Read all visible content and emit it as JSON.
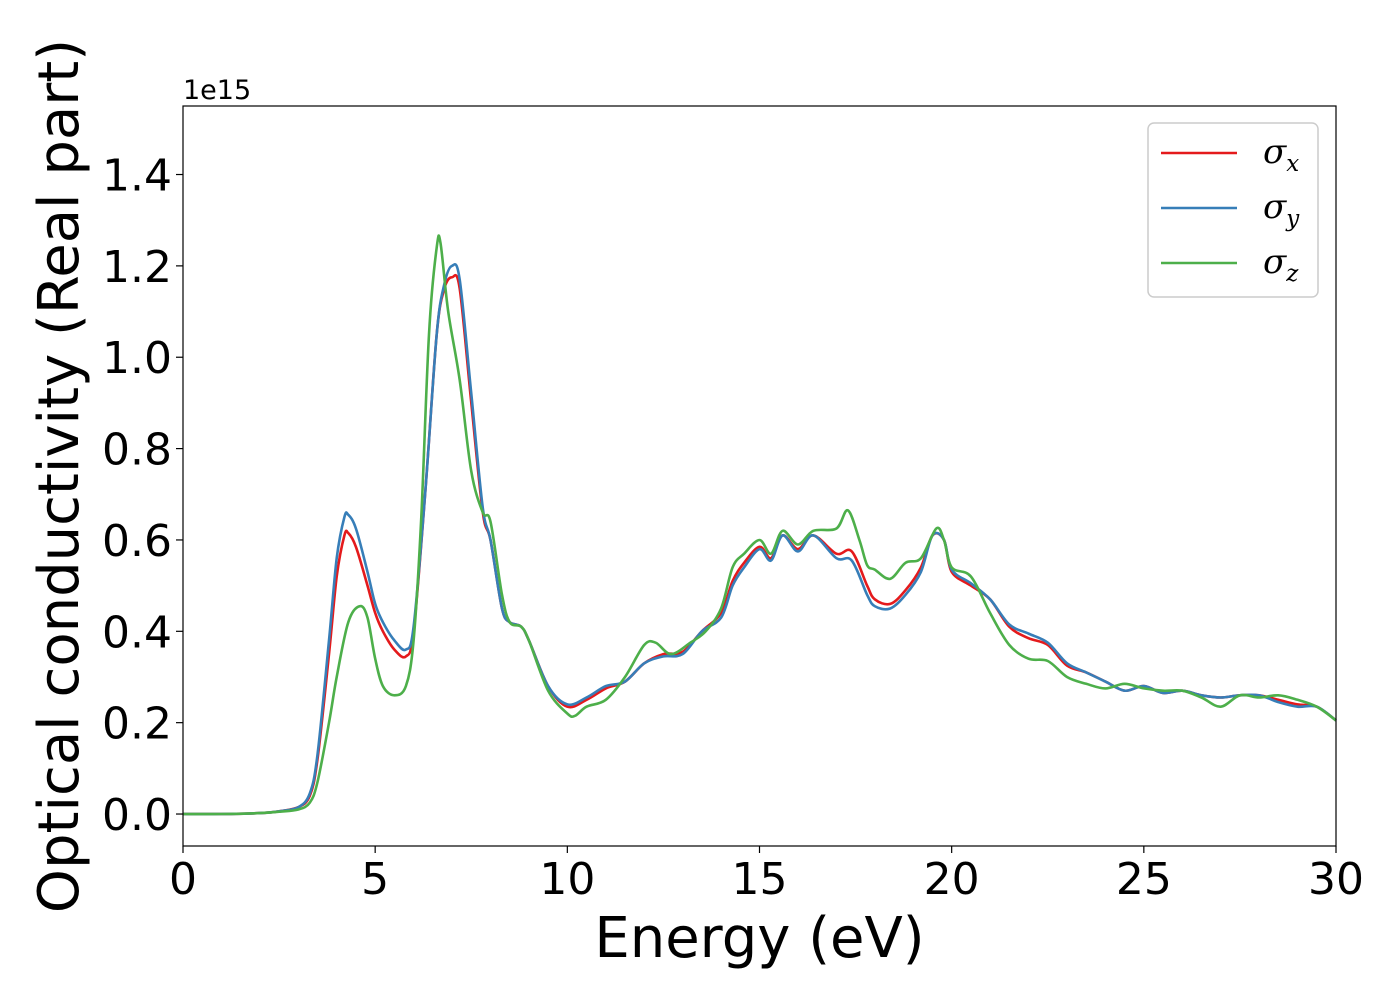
{
  "chart_data": {
    "type": "line",
    "title": "",
    "xlabel": "Energy (eV)",
    "ylabel": "Optical conductivity (Real part)",
    "y_offset_label": "1e15",
    "xlim": [
      0,
      30
    ],
    "ylim": [
      -0.07,
      1.55
    ],
    "xticks": [
      0,
      5,
      10,
      15,
      20,
      25,
      30
    ],
    "xtick_labels": [
      "0",
      "5",
      "10",
      "15",
      "20",
      "25",
      "30"
    ],
    "yticks": [
      0.0,
      0.2,
      0.4,
      0.6,
      0.8,
      1.0,
      1.2,
      1.4
    ],
    "ytick_labels": [
      "0.0",
      "0.2",
      "0.4",
      "0.6",
      "0.8",
      "1.0",
      "1.2",
      "1.4"
    ],
    "grid": false,
    "legend_position": "top-right",
    "series": [
      {
        "name": "σx",
        "symbol": "σ",
        "subscript": "x",
        "color": "#e41a1c",
        "points": [
          [
            0,
            0.0
          ],
          [
            1,
            0.0
          ],
          [
            2,
            0.002
          ],
          [
            2.5,
            0.006
          ],
          [
            3,
            0.015
          ],
          [
            3.3,
            0.04
          ],
          [
            3.5,
            0.12
          ],
          [
            3.8,
            0.35
          ],
          [
            4.0,
            0.52
          ],
          [
            4.2,
            0.61
          ],
          [
            4.3,
            0.615
          ],
          [
            4.5,
            0.585
          ],
          [
            4.8,
            0.5
          ],
          [
            5.0,
            0.44
          ],
          [
            5.2,
            0.4
          ],
          [
            5.5,
            0.36
          ],
          [
            5.8,
            0.345
          ],
          [
            6.0,
            0.4
          ],
          [
            6.3,
            0.7
          ],
          [
            6.6,
            1.05
          ],
          [
            6.8,
            1.15
          ],
          [
            7.0,
            1.175
          ],
          [
            7.2,
            1.15
          ],
          [
            7.5,
            0.9
          ],
          [
            7.8,
            0.66
          ],
          [
            8.0,
            0.6
          ],
          [
            8.3,
            0.45
          ],
          [
            8.5,
            0.42
          ],
          [
            8.8,
            0.41
          ],
          [
            9.0,
            0.38
          ],
          [
            9.5,
            0.28
          ],
          [
            10.0,
            0.235
          ],
          [
            10.5,
            0.25
          ],
          [
            11.0,
            0.275
          ],
          [
            11.5,
            0.29
          ],
          [
            12.0,
            0.33
          ],
          [
            12.5,
            0.35
          ],
          [
            13.0,
            0.355
          ],
          [
            13.5,
            0.4
          ],
          [
            14.0,
            0.44
          ],
          [
            14.3,
            0.51
          ],
          [
            14.6,
            0.55
          ],
          [
            15.0,
            0.585
          ],
          [
            15.3,
            0.56
          ],
          [
            15.6,
            0.61
          ],
          [
            16.0,
            0.58
          ],
          [
            16.4,
            0.61
          ],
          [
            17.0,
            0.57
          ],
          [
            17.4,
            0.575
          ],
          [
            17.8,
            0.5
          ],
          [
            18.0,
            0.47
          ],
          [
            18.4,
            0.46
          ],
          [
            18.8,
            0.49
          ],
          [
            19.2,
            0.54
          ],
          [
            19.5,
            0.61
          ],
          [
            19.8,
            0.6
          ],
          [
            20.0,
            0.53
          ],
          [
            20.5,
            0.5
          ],
          [
            21.0,
            0.47
          ],
          [
            21.5,
            0.41
          ],
          [
            22.0,
            0.385
          ],
          [
            22.5,
            0.37
          ],
          [
            23.0,
            0.325
          ],
          [
            23.5,
            0.31
          ],
          [
            24.0,
            0.29
          ],
          [
            24.5,
            0.27
          ],
          [
            25.0,
            0.28
          ],
          [
            25.5,
            0.265
          ],
          [
            26.0,
            0.27
          ],
          [
            26.5,
            0.26
          ],
          [
            27.0,
            0.255
          ],
          [
            27.5,
            0.26
          ],
          [
            28.0,
            0.26
          ],
          [
            28.5,
            0.25
          ],
          [
            29.0,
            0.24
          ],
          [
            29.5,
            0.235
          ],
          [
            30,
            0.205
          ]
        ]
      },
      {
        "name": "σy",
        "symbol": "σ",
        "subscript": "y",
        "color": "#377eb8",
        "points": [
          [
            0,
            0.0
          ],
          [
            1,
            0.0
          ],
          [
            2,
            0.002
          ],
          [
            2.5,
            0.006
          ],
          [
            3,
            0.015
          ],
          [
            3.3,
            0.045
          ],
          [
            3.5,
            0.13
          ],
          [
            3.8,
            0.38
          ],
          [
            4.0,
            0.56
          ],
          [
            4.2,
            0.65
          ],
          [
            4.3,
            0.655
          ],
          [
            4.5,
            0.625
          ],
          [
            4.8,
            0.53
          ],
          [
            5.0,
            0.46
          ],
          [
            5.2,
            0.42
          ],
          [
            5.5,
            0.38
          ],
          [
            5.8,
            0.36
          ],
          [
            6.0,
            0.41
          ],
          [
            6.3,
            0.7
          ],
          [
            6.6,
            1.05
          ],
          [
            6.8,
            1.16
          ],
          [
            7.0,
            1.2
          ],
          [
            7.2,
            1.17
          ],
          [
            7.5,
            0.92
          ],
          [
            7.8,
            0.67
          ],
          [
            8.0,
            0.6
          ],
          [
            8.3,
            0.45
          ],
          [
            8.5,
            0.42
          ],
          [
            8.8,
            0.41
          ],
          [
            9.0,
            0.38
          ],
          [
            9.5,
            0.28
          ],
          [
            10.0,
            0.24
          ],
          [
            10.5,
            0.255
          ],
          [
            11.0,
            0.28
          ],
          [
            11.5,
            0.29
          ],
          [
            12.0,
            0.33
          ],
          [
            12.5,
            0.345
          ],
          [
            13.0,
            0.35
          ],
          [
            13.5,
            0.4
          ],
          [
            14.0,
            0.43
          ],
          [
            14.3,
            0.5
          ],
          [
            14.6,
            0.54
          ],
          [
            15.0,
            0.58
          ],
          [
            15.3,
            0.555
          ],
          [
            15.6,
            0.61
          ],
          [
            16.0,
            0.575
          ],
          [
            16.4,
            0.61
          ],
          [
            17.0,
            0.56
          ],
          [
            17.4,
            0.555
          ],
          [
            17.8,
            0.48
          ],
          [
            18.0,
            0.455
          ],
          [
            18.4,
            0.45
          ],
          [
            18.8,
            0.48
          ],
          [
            19.2,
            0.53
          ],
          [
            19.5,
            0.61
          ],
          [
            19.8,
            0.6
          ],
          [
            20.0,
            0.535
          ],
          [
            20.5,
            0.505
          ],
          [
            21.0,
            0.47
          ],
          [
            21.5,
            0.415
          ],
          [
            22.0,
            0.395
          ],
          [
            22.5,
            0.375
          ],
          [
            23.0,
            0.33
          ],
          [
            23.5,
            0.31
          ],
          [
            24.0,
            0.29
          ],
          [
            24.5,
            0.27
          ],
          [
            25.0,
            0.28
          ],
          [
            25.5,
            0.265
          ],
          [
            26.0,
            0.27
          ],
          [
            26.5,
            0.26
          ],
          [
            27.0,
            0.255
          ],
          [
            27.5,
            0.26
          ],
          [
            28.0,
            0.26
          ],
          [
            28.5,
            0.245
          ],
          [
            29.0,
            0.235
          ],
          [
            29.5,
            0.235
          ],
          [
            30,
            0.205
          ]
        ]
      },
      {
        "name": "σz",
        "symbol": "σ",
        "subscript": "z",
        "color": "#4daf4a",
        "points": [
          [
            0,
            0.0
          ],
          [
            1,
            0.0
          ],
          [
            2,
            0.002
          ],
          [
            2.5,
            0.005
          ],
          [
            3,
            0.01
          ],
          [
            3.3,
            0.025
          ],
          [
            3.5,
            0.07
          ],
          [
            3.8,
            0.2
          ],
          [
            4.0,
            0.3
          ],
          [
            4.3,
            0.42
          ],
          [
            4.6,
            0.455
          ],
          [
            4.8,
            0.43
          ],
          [
            5.0,
            0.34
          ],
          [
            5.2,
            0.28
          ],
          [
            5.5,
            0.26
          ],
          [
            5.8,
            0.28
          ],
          [
            6.0,
            0.38
          ],
          [
            6.2,
            0.65
          ],
          [
            6.4,
            1.05
          ],
          [
            6.6,
            1.24
          ],
          [
            6.7,
            1.25
          ],
          [
            6.9,
            1.1
          ],
          [
            7.2,
            0.95
          ],
          [
            7.5,
            0.75
          ],
          [
            7.8,
            0.66
          ],
          [
            8.0,
            0.64
          ],
          [
            8.3,
            0.48
          ],
          [
            8.5,
            0.42
          ],
          [
            8.8,
            0.41
          ],
          [
            9.0,
            0.38
          ],
          [
            9.5,
            0.27
          ],
          [
            10.0,
            0.22
          ],
          [
            10.2,
            0.215
          ],
          [
            10.5,
            0.235
          ],
          [
            11.0,
            0.25
          ],
          [
            11.5,
            0.3
          ],
          [
            12.0,
            0.37
          ],
          [
            12.3,
            0.375
          ],
          [
            12.7,
            0.35
          ],
          [
            13.2,
            0.375
          ],
          [
            13.6,
            0.4
          ],
          [
            14.0,
            0.45
          ],
          [
            14.3,
            0.54
          ],
          [
            14.6,
            0.57
          ],
          [
            15.0,
            0.6
          ],
          [
            15.3,
            0.57
          ],
          [
            15.6,
            0.62
          ],
          [
            16.0,
            0.59
          ],
          [
            16.4,
            0.62
          ],
          [
            17.0,
            0.625
          ],
          [
            17.3,
            0.665
          ],
          [
            17.6,
            0.6
          ],
          [
            17.8,
            0.545
          ],
          [
            18.0,
            0.535
          ],
          [
            18.4,
            0.515
          ],
          [
            18.8,
            0.55
          ],
          [
            19.2,
            0.56
          ],
          [
            19.6,
            0.625
          ],
          [
            19.8,
            0.6
          ],
          [
            20.0,
            0.54
          ],
          [
            20.5,
            0.52
          ],
          [
            21.0,
            0.44
          ],
          [
            21.5,
            0.37
          ],
          [
            22.0,
            0.34
          ],
          [
            22.5,
            0.335
          ],
          [
            23.0,
            0.3
          ],
          [
            23.5,
            0.285
          ],
          [
            24.0,
            0.275
          ],
          [
            24.5,
            0.285
          ],
          [
            25.0,
            0.275
          ],
          [
            25.5,
            0.27
          ],
          [
            26.0,
            0.27
          ],
          [
            26.5,
            0.255
          ],
          [
            27.0,
            0.235
          ],
          [
            27.5,
            0.26
          ],
          [
            28.0,
            0.255
          ],
          [
            28.5,
            0.26
          ],
          [
            29.0,
            0.25
          ],
          [
            29.5,
            0.235
          ],
          [
            30,
            0.205
          ]
        ]
      }
    ]
  }
}
